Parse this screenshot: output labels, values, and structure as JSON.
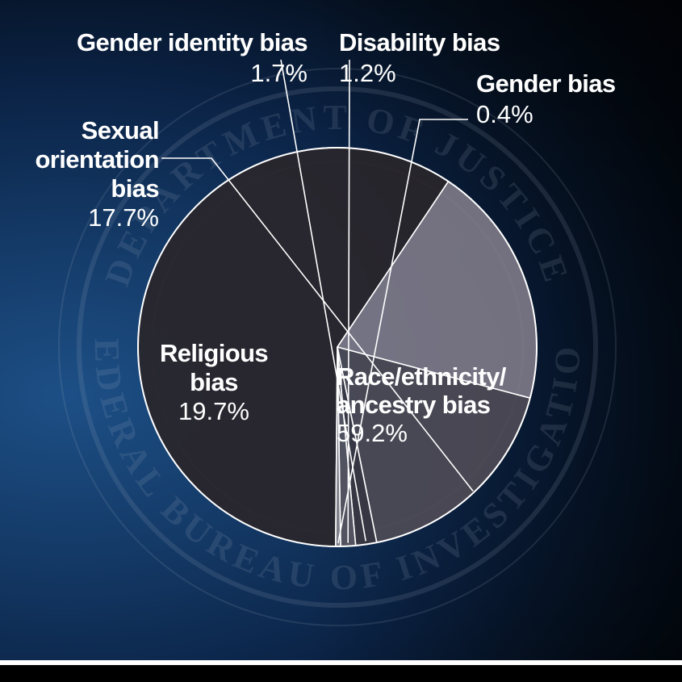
{
  "chart_data": {
    "type": "pie",
    "slices": [
      {
        "label": "Race/ethnicity/ ancestry bias",
        "label_lines": [
          "Race/ethnicity/",
          "ancestry bias"
        ],
        "value": 59.2,
        "value_label": "59.2%",
        "color": "#2a262b"
      },
      {
        "label": "Religious bias",
        "label_lines": [
          "Religious",
          "bias"
        ],
        "value": 19.7,
        "value_label": "19.7%",
        "color": "#807b88"
      },
      {
        "label": "Sexual orientation bias",
        "label_lines": [
          "Sexual",
          "orientation",
          "bias"
        ],
        "value": 17.7,
        "value_label": "17.7%",
        "color": "#4f4b55"
      },
      {
        "label": "Gender identity bias",
        "label_lines": [
          "Gender identity bias"
        ],
        "value": 1.7,
        "value_label": "1.7%",
        "color": "#3c3943"
      },
      {
        "label": "Disability bias",
        "label_lines": [
          "Disability bias"
        ],
        "value": 1.2,
        "value_label": "1.2%",
        "color": "#5a5662"
      },
      {
        "label": "Gender bias",
        "label_lines": [
          "Gender bias"
        ],
        "value": 0.4,
        "value_label": "0.4%",
        "color": "#8d8993"
      }
    ],
    "watermark_text": [
      "DEPARTMENT OF JUSTICE",
      "FEDERAL BUREAU OF INVESTIGATION"
    ]
  },
  "colors": {
    "background_primary": "#143a67",
    "background_dark": "#02060c",
    "slice_stroke": "#ffffff",
    "label_text": "#ffffff"
  }
}
